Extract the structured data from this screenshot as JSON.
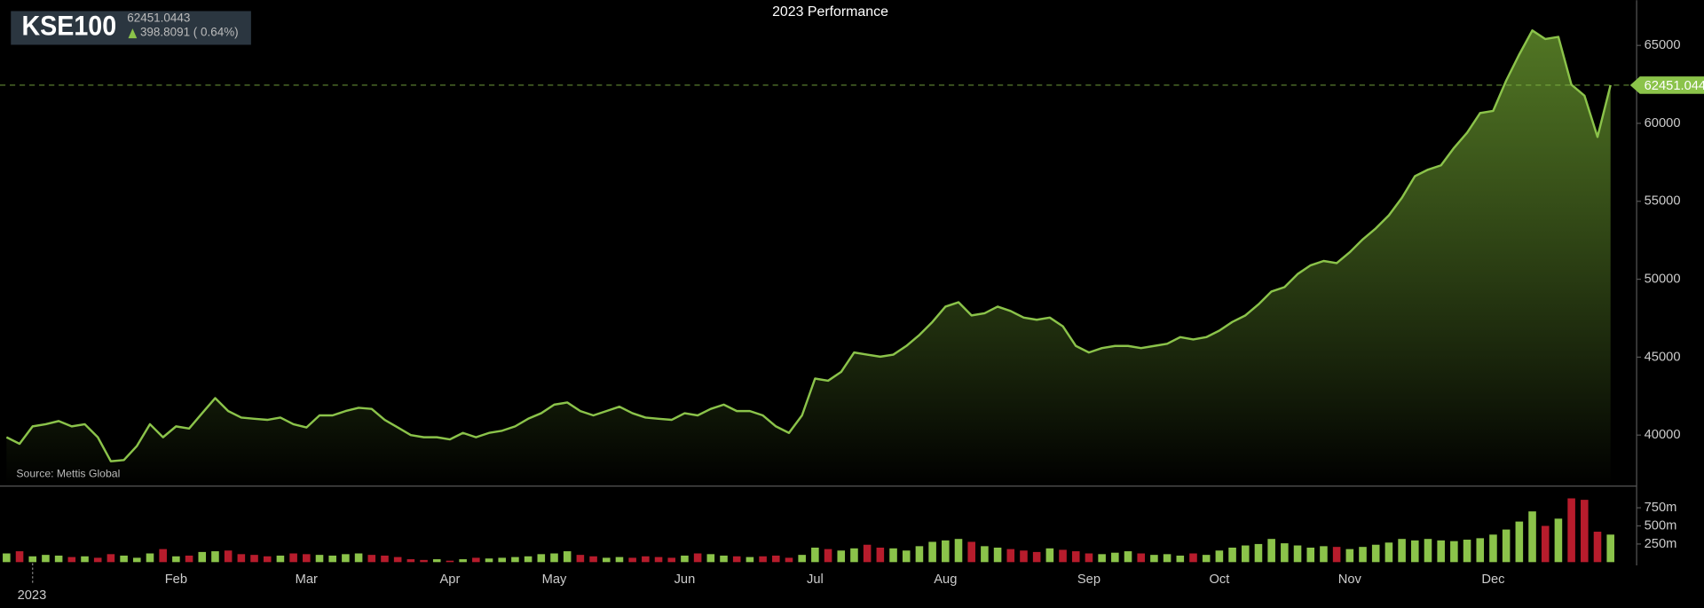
{
  "header": {
    "symbol": "KSE100",
    "change": "398.8091 ( 0.64%)"
  },
  "chart_data": [
    {
      "type": "line",
      "title": "2023 Performance",
      "source": "Source: Mettis Global",
      "color": "#8bc34a",
      "values": [
        39860,
        39440,
        40560,
        40700,
        40900,
        40560,
        40700,
        39860,
        38320,
        38400,
        39300,
        40700,
        39860,
        40560,
        40420,
        41400,
        42370,
        41540,
        41120,
        41050,
        40980,
        41120,
        40700,
        40490,
        41260,
        41260,
        41540,
        41750,
        41680,
        40980,
        40490,
        40000,
        39860,
        39860,
        39720,
        40140,
        39860,
        40140,
        40280,
        40560,
        41050,
        41400,
        41950,
        42090,
        41540,
        41260,
        41540,
        41820,
        41400,
        41120,
        41050,
        40980,
        41400,
        41260,
        41680,
        41950,
        41540,
        41540,
        41260,
        40560,
        40140,
        41260,
        43630,
        43490,
        44050,
        45300,
        45160,
        45030,
        45160,
        45720,
        46420,
        47260,
        48240,
        48520,
        47680,
        47820,
        48240,
        47960,
        47540,
        47400,
        47540,
        46980,
        45720,
        45300,
        45580,
        45720,
        45720,
        45580,
        45720,
        45860,
        46280,
        46140,
        46280,
        46700,
        47260,
        47680,
        48380,
        49210,
        49490,
        50330,
        50890,
        51170,
        51030,
        51730,
        52560,
        53260,
        54100,
        55220,
        56610,
        57030,
        57310,
        58430,
        59400,
        60660,
        60800,
        62750,
        64420,
        65960,
        65410,
        65550,
        62480,
        61780,
        59130,
        62451.0443
      ],
      "ylim": [
        36800,
        67900
      ],
      "yticks": [
        40000,
        45000,
        50000,
        55000,
        60000,
        65000
      ]
    },
    {
      "type": "bar",
      "up_color": "#8bc34a",
      "down_color": "#b71c2c",
      "categories": [
        null,
        null,
        "2023",
        null,
        null,
        null,
        null,
        null,
        null,
        null,
        null,
        null,
        null,
        "Feb",
        null,
        null,
        null,
        null,
        null,
        null,
        null,
        null,
        null,
        "Mar",
        null,
        null,
        null,
        null,
        null,
        null,
        null,
        null,
        null,
        null,
        "Apr",
        null,
        null,
        null,
        null,
        null,
        null,
        null,
        "May",
        null,
        null,
        null,
        null,
        null,
        null,
        null,
        null,
        null,
        "Jun",
        null,
        null,
        null,
        null,
        null,
        null,
        null,
        null,
        null,
        "Jul",
        null,
        null,
        null,
        null,
        null,
        null,
        null,
        null,
        null,
        "Aug",
        null,
        null,
        null,
        null,
        null,
        null,
        null,
        null,
        null,
        null,
        "Sep",
        null,
        null,
        null,
        null,
        null,
        null,
        null,
        null,
        null,
        "Oct",
        null,
        null,
        null,
        null,
        null,
        null,
        null,
        null,
        null,
        "Nov",
        null,
        null,
        null,
        null,
        null,
        null,
        null,
        null,
        null,
        null,
        "Dec",
        null,
        null,
        null,
        null,
        null,
        null,
        null,
        null,
        null
      ],
      "values": [
        120,
        150,
        80,
        100,
        90,
        70,
        80,
        60,
        110,
        90,
        60,
        120,
        180,
        80,
        90,
        140,
        150,
        160,
        110,
        100,
        80,
        90,
        120,
        110,
        100,
        90,
        110,
        120,
        100,
        90,
        70,
        40,
        30,
        40,
        20,
        40,
        60,
        50,
        60,
        70,
        80,
        110,
        120,
        150,
        100,
        80,
        60,
        70,
        60,
        80,
        70,
        60,
        90,
        120,
        110,
        90,
        80,
        70,
        80,
        90,
        60,
        100,
        200,
        180,
        160,
        190,
        240,
        200,
        190,
        160,
        220,
        280,
        300,
        320,
        280,
        220,
        200,
        180,
        160,
        140,
        190,
        170,
        150,
        120,
        110,
        130,
        150,
        120,
        100,
        110,
        90,
        120,
        100,
        160,
        200,
        230,
        250,
        320,
        260,
        230,
        200,
        220,
        210,
        180,
        210,
        240,
        270,
        320,
        300,
        320,
        300,
        290,
        310,
        330,
        380,
        450,
        560,
        700,
        500,
        600,
        880,
        860,
        420,
        380
      ],
      "ylim": [
        0,
        975
      ],
      "yticks": [
        {
          "value": 250,
          "label": "250m"
        },
        {
          "value": 500,
          "label": "500m"
        },
        {
          "value": 750,
          "label": "750m"
        }
      ]
    }
  ]
}
